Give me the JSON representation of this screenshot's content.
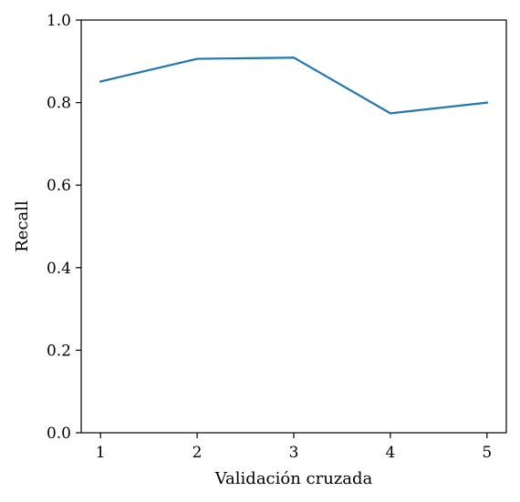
{
  "chart_data": {
    "type": "line",
    "title": "",
    "xlabel": "Validación cruzada",
    "ylabel": "Recall",
    "x": [
      1,
      2,
      3,
      4,
      5
    ],
    "xticks": [
      "1",
      "2",
      "3",
      "4",
      "5"
    ],
    "xlim": [
      0.8,
      5.2
    ],
    "ylim": [
      0.0,
      1.0
    ],
    "yticks": [
      "0.0",
      "0.2",
      "0.4",
      "0.6",
      "0.8",
      "1.0"
    ],
    "grid": false,
    "series": [
      {
        "values": [
          0.851,
          0.906,
          0.909,
          0.774,
          0.8
        ],
        "color": "#1f77b4"
      }
    ]
  }
}
